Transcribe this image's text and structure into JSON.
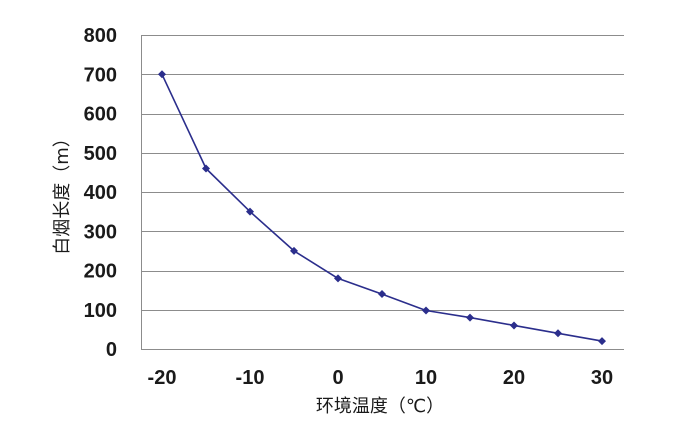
{
  "chart_data": {
    "type": "line",
    "title": "",
    "xlabel": "环境温度（℃）",
    "ylabel": "白烟长度（m）",
    "x": [
      -20,
      -15,
      -10,
      -5,
      0,
      5,
      10,
      15,
      20,
      25,
      30
    ],
    "series": [
      {
        "values": [
          700,
          460,
          350,
          250,
          180,
          140,
          98,
          80,
          60,
          40,
          20
        ],
        "color": "#2b2e8c"
      }
    ],
    "xlim": [
      -20,
      30
    ],
    "ylim": [
      0,
      800
    ],
    "xticks": [
      -20,
      -10,
      0,
      10,
      20,
      30
    ],
    "yticks": [
      0,
      100,
      200,
      300,
      400,
      500,
      600,
      700,
      800
    ],
    "xtick_labels": [
      "-20",
      "-10",
      "0",
      "10",
      "20",
      "30"
    ],
    "ytick_labels": [
      "0",
      "100",
      "200",
      "300",
      "400",
      "500",
      "600",
      "700",
      "800"
    ],
    "grid": "horizontal",
    "legend": "none",
    "colors": {
      "line": "#2b2e8c",
      "marker": "#2b2e8c",
      "grid": "#8c8c8c",
      "axis": "#8c8c8c",
      "text": "#1a1a1a"
    }
  }
}
